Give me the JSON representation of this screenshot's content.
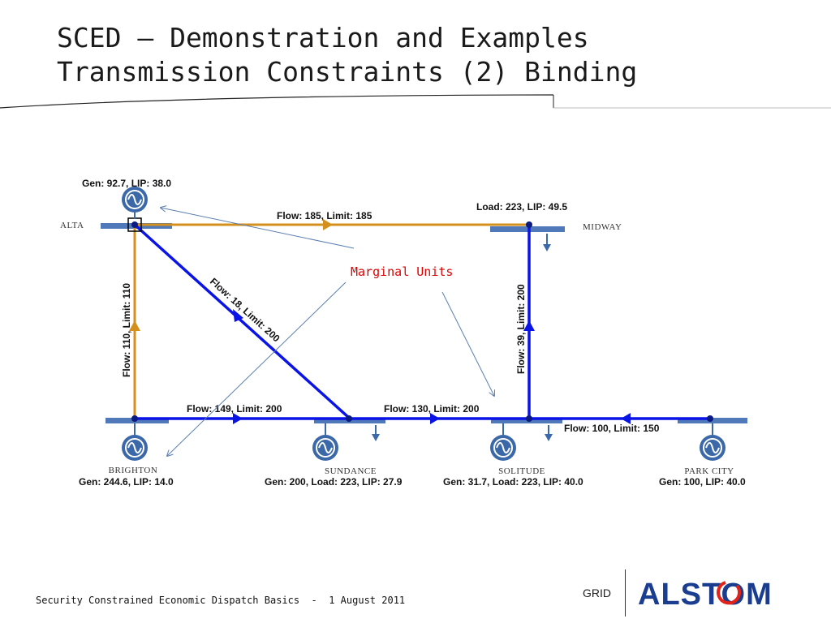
{
  "slide": {
    "title_line1": "SCED – Demonstration and Examples",
    "title_line2": "Transmission Constraints (2) Binding"
  },
  "diagram": {
    "buses": {
      "alta": "ALTA",
      "midway": "MIDWAY",
      "brighton": "BRIGHTON",
      "sundance": "SUNDANCE",
      "solitude": "SOLITUDE",
      "park_city": "PARK CITY"
    },
    "bus_info": {
      "alta": "Gen: 92.7, LIP: 38.0",
      "midway": "Load: 223, LIP: 49.5",
      "brighton": "Gen: 244.6, LIP: 14.0",
      "sundance": "Gen: 200,  Load: 223,  LIP: 27.9",
      "solitude": "Gen: 31.7,  Load: 223,  LIP: 40.0",
      "park_city": "Gen: 100, LIP: 40.0"
    },
    "lines": {
      "alta_midway": "Flow: 185, Limit: 185",
      "alta_brighton": "Flow: 110, Limit: 110",
      "alta_sundance": "Flow: 18, Limit: 200",
      "midway_solitude": "Flow: 39, Limit: 200",
      "brighton_sundance": "Flow: 149, Limit: 200",
      "sundance_solitude": "Flow: 130, Limit: 200",
      "parkcity_solitude": "Flow: 100, Limit: 150"
    },
    "annotation": "Marginal Units",
    "colors": {
      "binding_line": "#d4901c",
      "normal_line": "#0a14e6",
      "bus_bar": "#4f79b8",
      "annotation": "#e00000",
      "logo_blue": "#1a3d8f",
      "logo_red": "#e2231a"
    }
  },
  "footer": {
    "text": "Security Constrained Economic Dispatch Basics  -  1 August 2011",
    "grid": "GRID",
    "logo": "ALSTOM"
  }
}
